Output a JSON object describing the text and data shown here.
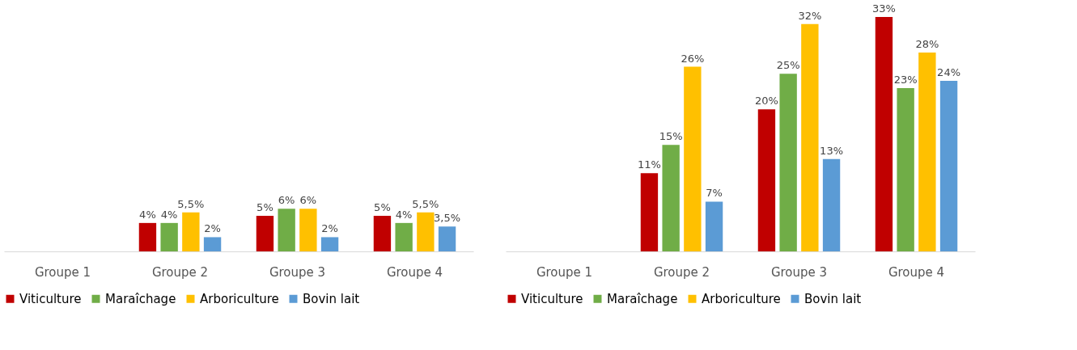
{
  "chart_data": [
    {
      "type": "bar",
      "categories": [
        "Groupe 1",
        "Groupe 2",
        "Groupe 3",
        "Groupe 4"
      ],
      "legend": "bottom",
      "series": [
        {
          "name": "Viticulture",
          "color": "#c00000",
          "values": [
            null,
            4,
            5,
            5
          ],
          "value_labels": [
            null,
            "4%",
            "5%",
            "5%"
          ]
        },
        {
          "name": "Maraîchage",
          "color": "#70ad47",
          "values": [
            null,
            4,
            6,
            4
          ],
          "value_labels": [
            null,
            "4%",
            "6%",
            "4%"
          ]
        },
        {
          "name": "Arboriculture",
          "color": "#ffc000",
          "values": [
            null,
            5.5,
            6,
            5.5
          ],
          "value_labels": [
            null,
            "5,5%",
            "6%",
            "5,5%"
          ]
        },
        {
          "name": "Bovin lait",
          "color": "#5b9bd5",
          "values": [
            null,
            2,
            2,
            3.5
          ],
          "value_labels": [
            null,
            "2%",
            "2%",
            "3,5%"
          ]
        }
      ]
    },
    {
      "type": "bar",
      "categories": [
        "Groupe 1",
        "Groupe 2",
        "Groupe 3",
        "Groupe 4"
      ],
      "legend": "bottom",
      "series": [
        {
          "name": "Viticulture",
          "color": "#c00000",
          "values": [
            null,
            11,
            20,
            33
          ],
          "value_labels": [
            null,
            "11%",
            "20%",
            "33%"
          ]
        },
        {
          "name": "Maraîchage",
          "color": "#70ad47",
          "values": [
            null,
            15,
            25,
            23
          ],
          "value_labels": [
            null,
            "15%",
            "25%",
            "23%"
          ]
        },
        {
          "name": "Arboriculture",
          "color": "#ffc000",
          "values": [
            null,
            26,
            32,
            28
          ],
          "value_labels": [
            null,
            "26%",
            "32%",
            "28%"
          ]
        },
        {
          "name": "Bovin lait",
          "color": "#5b9bd5",
          "values": [
            null,
            7,
            13,
            24
          ],
          "value_labels": [
            null,
            "7%",
            "13%",
            "24%"
          ]
        }
      ]
    }
  ]
}
